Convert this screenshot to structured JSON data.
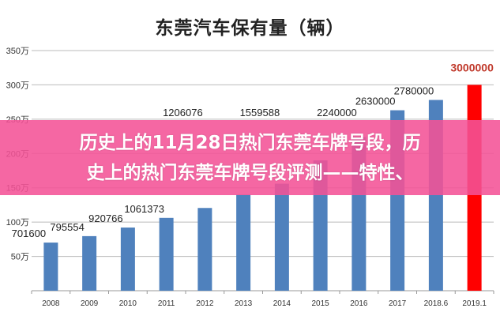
{
  "overlay": {
    "line1": "历史上的11月28日热门东莞车牌号段，历",
    "line2": "史上的热门东莞车牌号段评测——特性、"
  },
  "chart_data": {
    "type": "bar",
    "title": "东莞汽车保有量（辆）",
    "categories": [
      "2008",
      "2009",
      "2010",
      "2011",
      "2012",
      "2013",
      "2014",
      "2015",
      "2016",
      "2017",
      "2018.6",
      "2019.1"
    ],
    "values": [
      701600,
      795554,
      920766,
      1061373,
      1206076,
      1400000,
      1559588,
      1900000,
      2240000,
      2630000,
      2780000,
      3000000
    ],
    "data_labels": [
      "701600",
      "795554",
      "920766",
      "1061373",
      "1206076",
      "",
      "1559588",
      "",
      "2240000",
      "2630000",
      "2780000",
      "3000000"
    ],
    "yticks": [
      {
        "value": 500000,
        "label": "50万"
      },
      {
        "value": 1000000,
        "label": "100万"
      },
      {
        "value": 1500000,
        "label": "150万"
      },
      {
        "value": 2000000,
        "label": "200万"
      },
      {
        "value": 2500000,
        "label": "250万"
      },
      {
        "value": 3000000,
        "label": "300万"
      },
      {
        "value": 3500000,
        "label": "350万"
      }
    ],
    "ylim": [
      0,
      3500000
    ],
    "grid": true,
    "colors": {
      "bar": "#4f81bd",
      "highlight": "#ff0000",
      "highlight_label": "#c0392b"
    },
    "highlight_index": 11
  }
}
